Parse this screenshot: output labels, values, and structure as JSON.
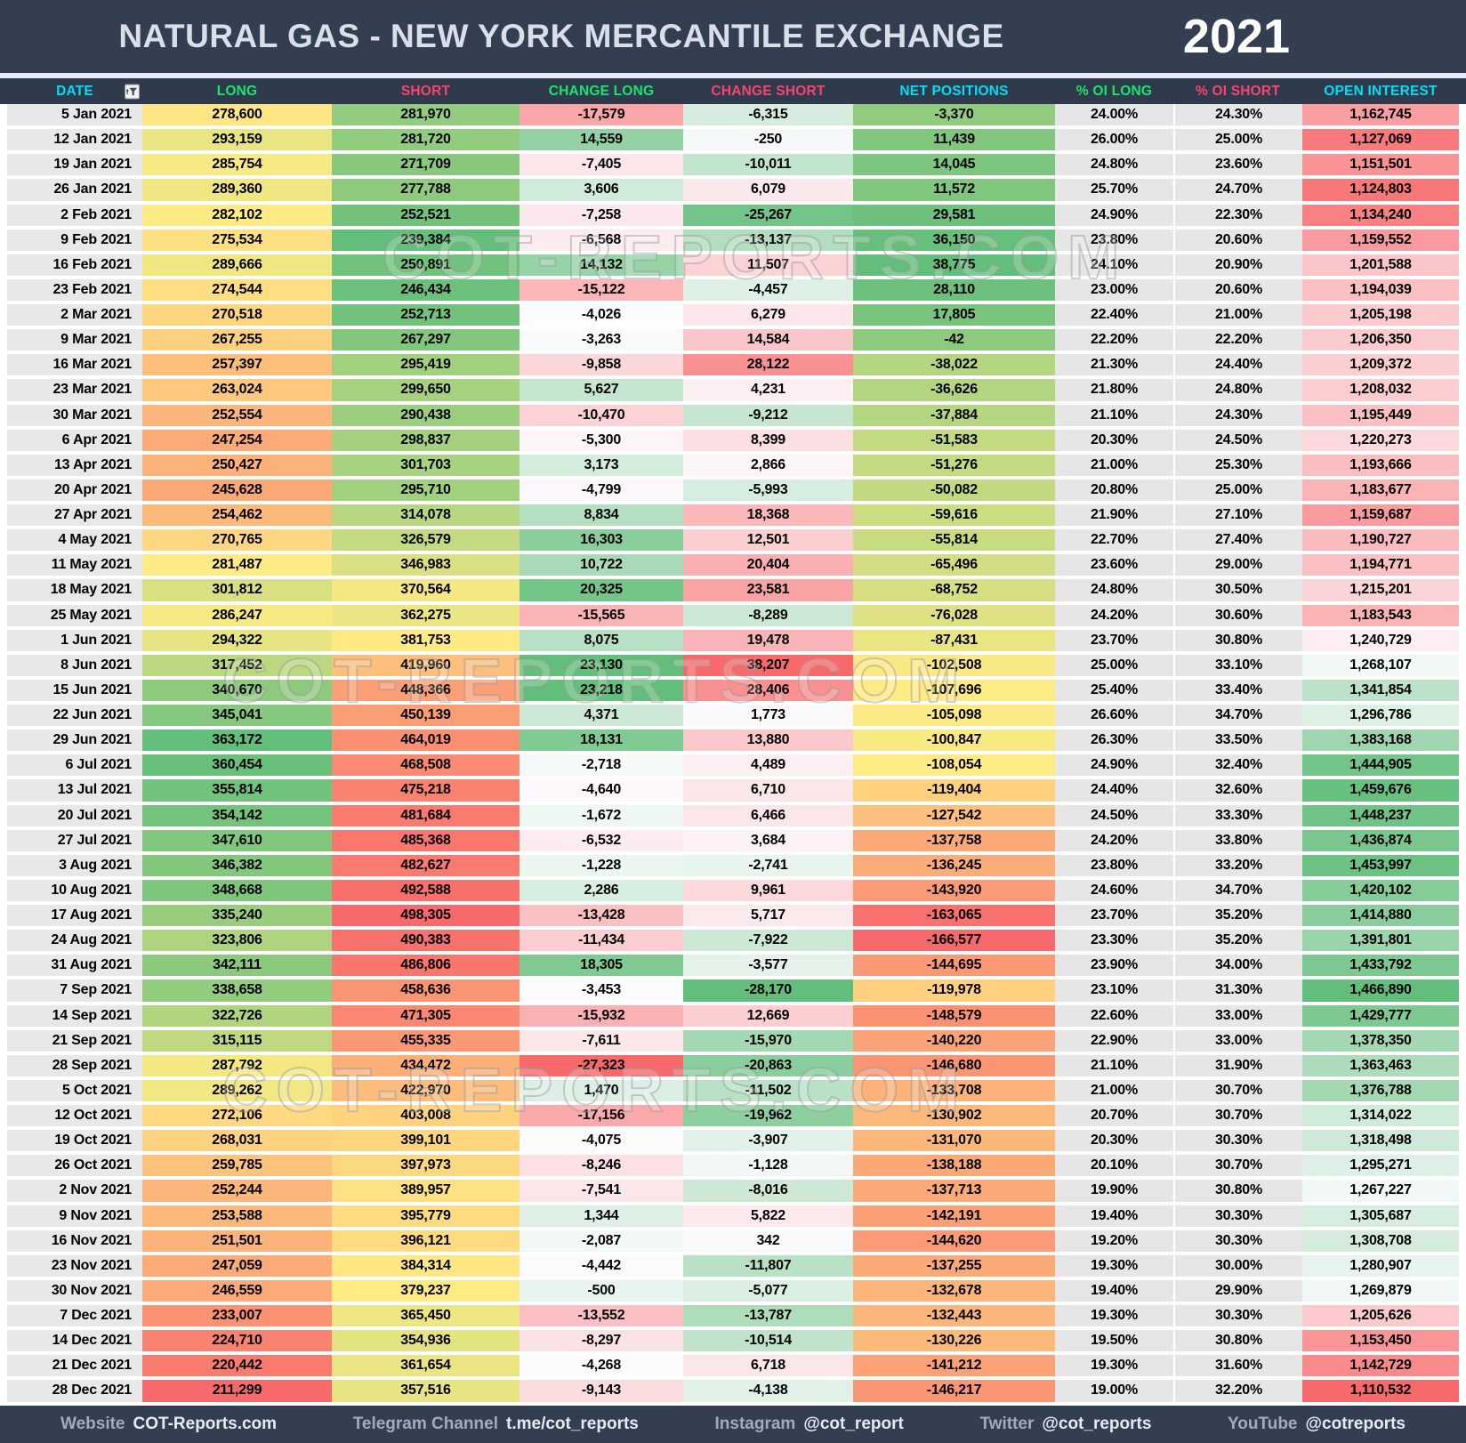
{
  "header": {
    "title": "NATURAL GAS - NEW YORK MERCANTILE EXCHANGE",
    "year": "2021"
  },
  "watermark": {
    "text": "COT-REPORTS.COM"
  },
  "colors": {
    "titlebar_bg": "#333F50",
    "header_row_bg": "#2F3B4D",
    "cyan": "#00DFF2",
    "green": "#19E56D",
    "pink": "#F8446E",
    "date_bg": "#E8E8E8",
    "pct_bg": "#E7E6E6",
    "scale_red": "#F8696B",
    "scale_yellow": "#FFEB84",
    "scale_green": "#63BE7B",
    "scale_white": "#FCFCFF"
  },
  "table": {
    "columns": [
      {
        "key": "date",
        "label": "DATE",
        "color": "cyan",
        "has_filter": true
      },
      {
        "key": "long",
        "label": "LONG",
        "color": "green",
        "scale": [
          "scale_red",
          "scale_yellow",
          "scale_green"
        ]
      },
      {
        "key": "short",
        "label": "SHORT",
        "color": "pink",
        "scale": [
          "scale_green",
          "scale_yellow",
          "scale_red"
        ]
      },
      {
        "key": "change_long",
        "label": "CHANGE LONG",
        "color": "green",
        "scale": [
          "scale_red",
          "scale_white",
          "scale_green"
        ]
      },
      {
        "key": "change_short",
        "label": "CHANGE SHORT",
        "color": "pink",
        "scale": [
          "scale_green",
          "scale_white",
          "scale_red"
        ]
      },
      {
        "key": "net",
        "label": "NET POSITIONS",
        "color": "cyan",
        "scale": [
          "scale_red",
          "scale_yellow",
          "scale_green"
        ]
      },
      {
        "key": "pct_oi_long",
        "label": "% OI LONG",
        "color": "green",
        "pct": true
      },
      {
        "key": "pct_oi_short",
        "label": "% OI SHORT",
        "color": "pink",
        "pct": true
      },
      {
        "key": "open_interest",
        "label": "OPEN INTEREST",
        "color": "cyan",
        "scale": [
          "scale_red",
          "scale_white",
          "scale_green"
        ]
      }
    ],
    "rows": [
      {
        "date": "5 Jan 2021",
        "long": 278600,
        "short": 281970,
        "change_long": -17579,
        "change_short": -6315,
        "net": -3370,
        "pct_oi_long": "24.00%",
        "pct_oi_short": "24.30%",
        "open_interest": 1162745
      },
      {
        "date": "12 Jan 2021",
        "long": 293159,
        "short": 281720,
        "change_long": 14559,
        "change_short": -250,
        "net": 11439,
        "pct_oi_long": "26.00%",
        "pct_oi_short": "25.00%",
        "open_interest": 1127069
      },
      {
        "date": "19 Jan 2021",
        "long": 285754,
        "short": 271709,
        "change_long": -7405,
        "change_short": -10011,
        "net": 14045,
        "pct_oi_long": "24.80%",
        "pct_oi_short": "23.60%",
        "open_interest": 1151501
      },
      {
        "date": "26 Jan 2021",
        "long": 289360,
        "short": 277788,
        "change_long": 3606,
        "change_short": 6079,
        "net": 11572,
        "pct_oi_long": "25.70%",
        "pct_oi_short": "24.70%",
        "open_interest": 1124803
      },
      {
        "date": "2 Feb 2021",
        "long": 282102,
        "short": 252521,
        "change_long": -7258,
        "change_short": -25267,
        "net": 29581,
        "pct_oi_long": "24.90%",
        "pct_oi_short": "22.30%",
        "open_interest": 1134240
      },
      {
        "date": "9 Feb 2021",
        "long": 275534,
        "short": 239384,
        "change_long": -6568,
        "change_short": -13137,
        "net": 36150,
        "pct_oi_long": "23.80%",
        "pct_oi_short": "20.60%",
        "open_interest": 1159552
      },
      {
        "date": "16 Feb 2021",
        "long": 289666,
        "short": 250891,
        "change_long": 14132,
        "change_short": 11507,
        "net": 38775,
        "pct_oi_long": "24.10%",
        "pct_oi_short": "20.90%",
        "open_interest": 1201588
      },
      {
        "date": "23 Feb 2021",
        "long": 274544,
        "short": 246434,
        "change_long": -15122,
        "change_short": -4457,
        "net": 28110,
        "pct_oi_long": "23.00%",
        "pct_oi_short": "20.60%",
        "open_interest": 1194039
      },
      {
        "date": "2 Mar 2021",
        "long": 270518,
        "short": 252713,
        "change_long": -4026,
        "change_short": 6279,
        "net": 17805,
        "pct_oi_long": "22.40%",
        "pct_oi_short": "21.00%",
        "open_interest": 1205198
      },
      {
        "date": "9 Mar 2021",
        "long": 267255,
        "short": 267297,
        "change_long": -3263,
        "change_short": 14584,
        "net": -42,
        "pct_oi_long": "22.20%",
        "pct_oi_short": "22.20%",
        "open_interest": 1206350
      },
      {
        "date": "16 Mar 2021",
        "long": 257397,
        "short": 295419,
        "change_long": -9858,
        "change_short": 28122,
        "net": -38022,
        "pct_oi_long": "21.30%",
        "pct_oi_short": "24.40%",
        "open_interest": 1209372
      },
      {
        "date": "23 Mar 2021",
        "long": 263024,
        "short": 299650,
        "change_long": 5627,
        "change_short": 4231,
        "net": -36626,
        "pct_oi_long": "21.80%",
        "pct_oi_short": "24.80%",
        "open_interest": 1208032
      },
      {
        "date": "30 Mar 2021",
        "long": 252554,
        "short": 290438,
        "change_long": -10470,
        "change_short": -9212,
        "net": -37884,
        "pct_oi_long": "21.10%",
        "pct_oi_short": "24.30%",
        "open_interest": 1195449
      },
      {
        "date": "6 Apr 2021",
        "long": 247254,
        "short": 298837,
        "change_long": -5300,
        "change_short": 8399,
        "net": -51583,
        "pct_oi_long": "20.30%",
        "pct_oi_short": "24.50%",
        "open_interest": 1220273
      },
      {
        "date": "13 Apr 2021",
        "long": 250427,
        "short": 301703,
        "change_long": 3173,
        "change_short": 2866,
        "net": -51276,
        "pct_oi_long": "21.00%",
        "pct_oi_short": "25.30%",
        "open_interest": 1193666
      },
      {
        "date": "20 Apr 2021",
        "long": 245628,
        "short": 295710,
        "change_long": -4799,
        "change_short": -5993,
        "net": -50082,
        "pct_oi_long": "20.80%",
        "pct_oi_short": "25.00%",
        "open_interest": 1183677
      },
      {
        "date": "27 Apr 2021",
        "long": 254462,
        "short": 314078,
        "change_long": 8834,
        "change_short": 18368,
        "net": -59616,
        "pct_oi_long": "21.90%",
        "pct_oi_short": "27.10%",
        "open_interest": 1159687
      },
      {
        "date": "4 May 2021",
        "long": 270765,
        "short": 326579,
        "change_long": 16303,
        "change_short": 12501,
        "net": -55814,
        "pct_oi_long": "22.70%",
        "pct_oi_short": "27.40%",
        "open_interest": 1190727
      },
      {
        "date": "11 May 2021",
        "long": 281487,
        "short": 346983,
        "change_long": 10722,
        "change_short": 20404,
        "net": -65496,
        "pct_oi_long": "23.60%",
        "pct_oi_short": "29.00%",
        "open_interest": 1194771
      },
      {
        "date": "18 May 2021",
        "long": 301812,
        "short": 370564,
        "change_long": 20325,
        "change_short": 23581,
        "net": -68752,
        "pct_oi_long": "24.80%",
        "pct_oi_short": "30.50%",
        "open_interest": 1215201
      },
      {
        "date": "25 May 2021",
        "long": 286247,
        "short": 362275,
        "change_long": -15565,
        "change_short": -8289,
        "net": -76028,
        "pct_oi_long": "24.20%",
        "pct_oi_short": "30.60%",
        "open_interest": 1183543
      },
      {
        "date": "1 Jun 2021",
        "long": 294322,
        "short": 381753,
        "change_long": 8075,
        "change_short": 19478,
        "net": -87431,
        "pct_oi_long": "23.70%",
        "pct_oi_short": "30.80%",
        "open_interest": 1240729
      },
      {
        "date": "8 Jun 2021",
        "long": 317452,
        "short": 419960,
        "change_long": 23130,
        "change_short": 38207,
        "net": -102508,
        "pct_oi_long": "25.00%",
        "pct_oi_short": "33.10%",
        "open_interest": 1268107
      },
      {
        "date": "15 Jun 2021",
        "long": 340670,
        "short": 448366,
        "change_long": 23218,
        "change_short": 28406,
        "net": -107696,
        "pct_oi_long": "25.40%",
        "pct_oi_short": "33.40%",
        "open_interest": 1341854
      },
      {
        "date": "22 Jun 2021",
        "long": 345041,
        "short": 450139,
        "change_long": 4371,
        "change_short": 1773,
        "net": -105098,
        "pct_oi_long": "26.60%",
        "pct_oi_short": "34.70%",
        "open_interest": 1296786
      },
      {
        "date": "29 Jun 2021",
        "long": 363172,
        "short": 464019,
        "change_long": 18131,
        "change_short": 13880,
        "net": -100847,
        "pct_oi_long": "26.30%",
        "pct_oi_short": "33.50%",
        "open_interest": 1383168
      },
      {
        "date": "6 Jul 2021",
        "long": 360454,
        "short": 468508,
        "change_long": -2718,
        "change_short": 4489,
        "net": -108054,
        "pct_oi_long": "24.90%",
        "pct_oi_short": "32.40%",
        "open_interest": 1444905
      },
      {
        "date": "13 Jul 2021",
        "long": 355814,
        "short": 475218,
        "change_long": -4640,
        "change_short": 6710,
        "net": -119404,
        "pct_oi_long": "24.40%",
        "pct_oi_short": "32.60%",
        "open_interest": 1459676
      },
      {
        "date": "20 Jul 2021",
        "long": 354142,
        "short": 481684,
        "change_long": -1672,
        "change_short": 6466,
        "net": -127542,
        "pct_oi_long": "24.50%",
        "pct_oi_short": "33.30%",
        "open_interest": 1448237
      },
      {
        "date": "27 Jul 2021",
        "long": 347610,
        "short": 485368,
        "change_long": -6532,
        "change_short": 3684,
        "net": -137758,
        "pct_oi_long": "24.20%",
        "pct_oi_short": "33.80%",
        "open_interest": 1436874
      },
      {
        "date": "3 Aug 2021",
        "long": 346382,
        "short": 482627,
        "change_long": -1228,
        "change_short": -2741,
        "net": -136245,
        "pct_oi_long": "23.80%",
        "pct_oi_short": "33.20%",
        "open_interest": 1453997
      },
      {
        "date": "10 Aug 2021",
        "long": 348668,
        "short": 492588,
        "change_long": 2286,
        "change_short": 9961,
        "net": -143920,
        "pct_oi_long": "24.60%",
        "pct_oi_short": "34.70%",
        "open_interest": 1420102
      },
      {
        "date": "17 Aug 2021",
        "long": 335240,
        "short": 498305,
        "change_long": -13428,
        "change_short": 5717,
        "net": -163065,
        "pct_oi_long": "23.70%",
        "pct_oi_short": "35.20%",
        "open_interest": 1414880
      },
      {
        "date": "24 Aug 2021",
        "long": 323806,
        "short": 490383,
        "change_long": -11434,
        "change_short": -7922,
        "net": -166577,
        "pct_oi_long": "23.30%",
        "pct_oi_short": "35.20%",
        "open_interest": 1391801
      },
      {
        "date": "31 Aug 2021",
        "long": 342111,
        "short": 486806,
        "change_long": 18305,
        "change_short": -3577,
        "net": -144695,
        "pct_oi_long": "23.90%",
        "pct_oi_short": "34.00%",
        "open_interest": 1433792
      },
      {
        "date": "7 Sep 2021",
        "long": 338658,
        "short": 458636,
        "change_long": -3453,
        "change_short": -28170,
        "net": -119978,
        "pct_oi_long": "23.10%",
        "pct_oi_short": "31.30%",
        "open_interest": 1466890
      },
      {
        "date": "14 Sep 2021",
        "long": 322726,
        "short": 471305,
        "change_long": -15932,
        "change_short": 12669,
        "net": -148579,
        "pct_oi_long": "22.60%",
        "pct_oi_short": "33.00%",
        "open_interest": 1429777
      },
      {
        "date": "21 Sep 2021",
        "long": 315115,
        "short": 455335,
        "change_long": -7611,
        "change_short": -15970,
        "net": -140220,
        "pct_oi_long": "22.90%",
        "pct_oi_short": "33.00%",
        "open_interest": 1378350
      },
      {
        "date": "28 Sep 2021",
        "long": 287792,
        "short": 434472,
        "change_long": -27323,
        "change_short": -20863,
        "net": -146680,
        "pct_oi_long": "21.10%",
        "pct_oi_short": "31.90%",
        "open_interest": 1363463
      },
      {
        "date": "5 Oct 2021",
        "long": 289262,
        "short": 422970,
        "change_long": 1470,
        "change_short": -11502,
        "net": -133708,
        "pct_oi_long": "21.00%",
        "pct_oi_short": "30.70%",
        "open_interest": 1376788
      },
      {
        "date": "12 Oct 2021",
        "long": 272106,
        "short": 403008,
        "change_long": -17156,
        "change_short": -19962,
        "net": -130902,
        "pct_oi_long": "20.70%",
        "pct_oi_short": "30.70%",
        "open_interest": 1314022
      },
      {
        "date": "19 Oct 2021",
        "long": 268031,
        "short": 399101,
        "change_long": -4075,
        "change_short": -3907,
        "net": -131070,
        "pct_oi_long": "20.30%",
        "pct_oi_short": "30.30%",
        "open_interest": 1318498
      },
      {
        "date": "26 Oct 2021",
        "long": 259785,
        "short": 397973,
        "change_long": -8246,
        "change_short": -1128,
        "net": -138188,
        "pct_oi_long": "20.10%",
        "pct_oi_short": "30.70%",
        "open_interest": 1295271
      },
      {
        "date": "2 Nov 2021",
        "long": 252244,
        "short": 389957,
        "change_long": -7541,
        "change_short": -8016,
        "net": -137713,
        "pct_oi_long": "19.90%",
        "pct_oi_short": "30.80%",
        "open_interest": 1267227
      },
      {
        "date": "9 Nov 2021",
        "long": 253588,
        "short": 395779,
        "change_long": 1344,
        "change_short": 5822,
        "net": -142191,
        "pct_oi_long": "19.40%",
        "pct_oi_short": "30.30%",
        "open_interest": 1305687
      },
      {
        "date": "16 Nov 2021",
        "long": 251501,
        "short": 396121,
        "change_long": -2087,
        "change_short": 342,
        "net": -144620,
        "pct_oi_long": "19.20%",
        "pct_oi_short": "30.30%",
        "open_interest": 1308708
      },
      {
        "date": "23 Nov 2021",
        "long": 247059,
        "short": 384314,
        "change_long": -4442,
        "change_short": -11807,
        "net": -137255,
        "pct_oi_long": "19.30%",
        "pct_oi_short": "30.00%",
        "open_interest": 1280907
      },
      {
        "date": "30 Nov 2021",
        "long": 246559,
        "short": 379237,
        "change_long": -500,
        "change_short": -5077,
        "net": -132678,
        "pct_oi_long": "19.40%",
        "pct_oi_short": "29.90%",
        "open_interest": 1269879
      },
      {
        "date": "7 Dec 2021",
        "long": 233007,
        "short": 365450,
        "change_long": -13552,
        "change_short": -13787,
        "net": -132443,
        "pct_oi_long": "19.30%",
        "pct_oi_short": "30.30%",
        "open_interest": 1205626
      },
      {
        "date": "14 Dec 2021",
        "long": 224710,
        "short": 354936,
        "change_long": -8297,
        "change_short": -10514,
        "net": -130226,
        "pct_oi_long": "19.50%",
        "pct_oi_short": "30.80%",
        "open_interest": 1153450
      },
      {
        "date": "21 Dec 2021",
        "long": 220442,
        "short": 361654,
        "change_long": -4268,
        "change_short": 6718,
        "net": -141212,
        "pct_oi_long": "19.30%",
        "pct_oi_short": "31.60%",
        "open_interest": 1142729
      },
      {
        "date": "28 Dec 2021",
        "long": 211299,
        "short": 357516,
        "change_long": -9143,
        "change_short": -4138,
        "net": -146217,
        "pct_oi_long": "19.00%",
        "pct_oi_short": "32.20%",
        "open_interest": 1110532
      }
    ]
  },
  "footer": {
    "items": [
      {
        "label": "Website",
        "value": "COT-Reports.com"
      },
      {
        "label": "Telegram Channel",
        "value": "t.me/cot_reports"
      },
      {
        "label": "Instagram",
        "value": "@cot_report"
      },
      {
        "label": "Twitter",
        "value": "@cot_reports"
      },
      {
        "label": "YouTube",
        "value": "@cotreports"
      }
    ]
  }
}
